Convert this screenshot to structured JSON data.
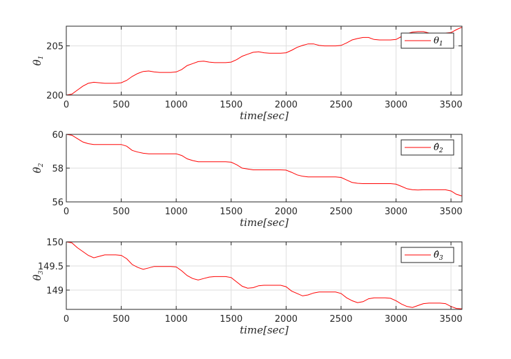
{
  "colors": {
    "series": "#ff0000",
    "axis": "#262626",
    "grid": "#dedede",
    "background": "#ffffff"
  },
  "chart_data": [
    {
      "type": "line",
      "xlabel": "time[sec]",
      "ylabel": {
        "base": "θ",
        "sub": "1"
      },
      "xlim": [
        0,
        3600
      ],
      "ylim": [
        200,
        207
      ],
      "xticks": [
        "0",
        "500",
        "1000",
        "1500",
        "2000",
        "2500",
        "3000",
        "3500"
      ],
      "yticks": [
        "200",
        "205"
      ],
      "grid": true,
      "legend": {
        "position": "top-right",
        "label": {
          "base": "θ",
          "sub": "1"
        }
      },
      "series": [
        {
          "x": [
            0,
            50,
            100,
            150,
            200,
            250,
            300,
            350,
            400,
            450,
            500,
            550,
            600,
            650,
            700,
            750,
            800,
            850,
            900,
            950,
            1000,
            1050,
            1100,
            1150,
            1200,
            1250,
            1300,
            1350,
            1400,
            1450,
            1500,
            1550,
            1600,
            1650,
            1700,
            1750,
            1800,
            1850,
            1900,
            1950,
            2000,
            2050,
            2100,
            2150,
            2200,
            2250,
            2300,
            2350,
            2400,
            2450,
            2500,
            2550,
            2600,
            2650,
            2700,
            2750,
            2800,
            2850,
            2900,
            2950,
            3000,
            3050,
            3100,
            3150,
            3200,
            3250,
            3300,
            3350,
            3400,
            3450,
            3500,
            3550,
            3600
          ],
          "y": [
            200.0,
            200.1,
            200.5,
            200.9,
            201.2,
            201.3,
            201.25,
            201.2,
            201.2,
            201.2,
            201.25,
            201.5,
            201.9,
            202.2,
            202.4,
            202.45,
            202.35,
            202.3,
            202.3,
            202.3,
            202.35,
            202.6,
            203.0,
            203.2,
            203.4,
            203.45,
            203.35,
            203.3,
            203.3,
            203.3,
            203.35,
            203.6,
            203.95,
            204.15,
            204.35,
            204.4,
            204.3,
            204.25,
            204.25,
            204.25,
            204.3,
            204.55,
            204.85,
            205.05,
            205.2,
            205.2,
            205.05,
            205.0,
            205.0,
            205.0,
            205.05,
            205.3,
            205.6,
            205.75,
            205.85,
            205.85,
            205.65,
            205.6,
            205.6,
            205.6,
            205.65,
            205.95,
            206.25,
            206.4,
            206.45,
            206.45,
            206.3,
            206.3,
            206.3,
            206.3,
            206.35,
            206.65,
            206.9
          ]
        }
      ]
    },
    {
      "type": "line",
      "xlabel": "time[sec]",
      "ylabel": {
        "base": "θ",
        "sub": "2"
      },
      "xlim": [
        0,
        3600
      ],
      "ylim": [
        56,
        60
      ],
      "xticks": [
        "0",
        "500",
        "1000",
        "1500",
        "2000",
        "2500",
        "3000",
        "3500"
      ],
      "yticks": [
        "56",
        "58",
        "60"
      ],
      "grid": true,
      "legend": {
        "position": "top-right",
        "label": {
          "base": "θ̂",
          "sub": "2"
        }
      },
      "series": [
        {
          "x": [
            0,
            50,
            100,
            150,
            200,
            250,
            300,
            350,
            400,
            450,
            500,
            550,
            600,
            650,
            700,
            750,
            800,
            850,
            900,
            950,
            1000,
            1050,
            1100,
            1150,
            1200,
            1250,
            1300,
            1350,
            1400,
            1450,
            1500,
            1550,
            1600,
            1650,
            1700,
            1750,
            1800,
            1850,
            1900,
            1950,
            2000,
            2050,
            2100,
            2150,
            2200,
            2250,
            2300,
            2350,
            2400,
            2450,
            2500,
            2550,
            2600,
            2650,
            2700,
            2750,
            2800,
            2850,
            2900,
            2950,
            3000,
            3050,
            3100,
            3150,
            3200,
            3250,
            3300,
            3350,
            3400,
            3450,
            3500,
            3550,
            3600
          ],
          "y": [
            60.0,
            59.95,
            59.75,
            59.55,
            59.45,
            59.4,
            59.4,
            59.4,
            59.4,
            59.4,
            59.4,
            59.3,
            59.05,
            58.95,
            58.88,
            58.85,
            58.85,
            58.85,
            58.85,
            58.85,
            58.85,
            58.75,
            58.55,
            58.45,
            58.38,
            58.38,
            58.38,
            58.38,
            58.38,
            58.38,
            58.35,
            58.2,
            58.0,
            57.95,
            57.9,
            57.9,
            57.9,
            57.9,
            57.9,
            57.9,
            57.88,
            57.75,
            57.6,
            57.52,
            57.48,
            57.48,
            57.48,
            57.48,
            57.48,
            57.48,
            57.45,
            57.3,
            57.15,
            57.1,
            57.08,
            57.08,
            57.08,
            57.08,
            57.08,
            57.08,
            57.05,
            56.92,
            56.78,
            56.72,
            56.7,
            56.72,
            56.72,
            56.72,
            56.72,
            56.72,
            56.65,
            56.45,
            56.35
          ]
        }
      ]
    },
    {
      "type": "line",
      "xlabel": "time[sec]",
      "ylabel": {
        "base": "θ",
        "sub": "3"
      },
      "xlim": [
        0,
        3600
      ],
      "ylim": [
        148.6,
        150
      ],
      "xticks": [
        "0",
        "500",
        "1000",
        "1500",
        "2000",
        "2500",
        "3000",
        "3500"
      ],
      "yticks": [
        "149",
        "149.5",
        "150"
      ],
      "grid": true,
      "legend": {
        "position": "top-right",
        "label": {
          "base": "θ̂",
          "sub": "3"
        }
      },
      "series": [
        {
          "x": [
            0,
            50,
            100,
            150,
            200,
            250,
            300,
            350,
            400,
            450,
            500,
            550,
            600,
            650,
            700,
            750,
            800,
            850,
            900,
            950,
            1000,
            1050,
            1100,
            1150,
            1200,
            1250,
            1300,
            1350,
            1400,
            1450,
            1500,
            1550,
            1600,
            1650,
            1700,
            1750,
            1800,
            1850,
            1900,
            1950,
            2000,
            2050,
            2100,
            2150,
            2200,
            2250,
            2300,
            2350,
            2400,
            2450,
            2500,
            2550,
            2600,
            2650,
            2700,
            2750,
            2800,
            2850,
            2900,
            2950,
            3000,
            3050,
            3100,
            3150,
            3200,
            3250,
            3300,
            3350,
            3400,
            3450,
            3500,
            3550,
            3600
          ],
          "y": [
            150.0,
            149.98,
            149.88,
            149.8,
            149.72,
            149.67,
            149.7,
            149.73,
            149.73,
            149.73,
            149.72,
            149.65,
            149.53,
            149.47,
            149.43,
            149.46,
            149.49,
            149.49,
            149.49,
            149.49,
            149.48,
            149.4,
            149.3,
            149.24,
            149.21,
            149.24,
            149.27,
            149.28,
            149.28,
            149.28,
            149.26,
            149.17,
            149.08,
            149.04,
            149.05,
            149.09,
            149.1,
            149.1,
            149.1,
            149.1,
            149.07,
            148.98,
            148.93,
            148.88,
            148.9,
            148.94,
            148.96,
            148.96,
            148.96,
            148.96,
            148.93,
            148.84,
            148.78,
            148.74,
            148.76,
            148.82,
            148.84,
            148.84,
            148.84,
            148.83,
            148.78,
            148.71,
            148.66,
            148.64,
            148.68,
            148.72,
            148.73,
            148.73,
            148.73,
            148.72,
            148.66,
            148.62,
            148.61
          ]
        }
      ]
    }
  ]
}
